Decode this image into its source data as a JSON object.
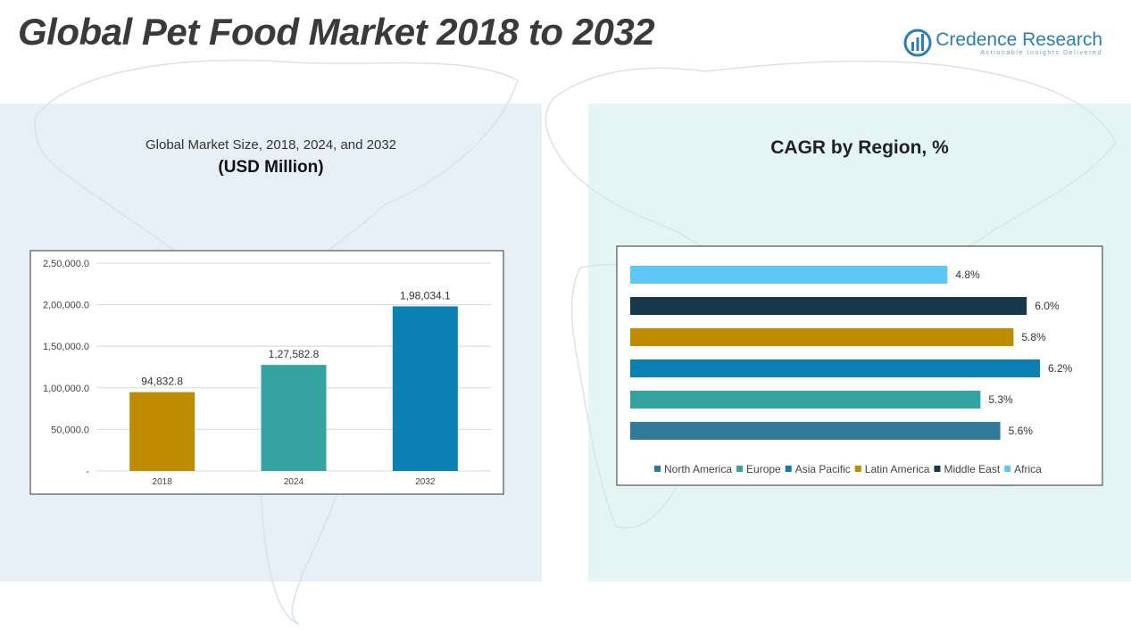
{
  "header": {
    "title": "Global Pet Food Market 2018 to 2032",
    "logo_name": "Credence Research",
    "logo_tagline": "Actionable Insights Delivered"
  },
  "left_chart": {
    "subtitle": "Global Market Size, 2018, 2024, and 2032",
    "unit": "(USD Million)"
  },
  "right_chart": {
    "title": "CAGR by Region, %"
  },
  "chart_data": [
    {
      "type": "bar",
      "title": "Global Market Size, 2018, 2024, and 2032",
      "ylabel": "(USD Million)",
      "categories": [
        "2018",
        "2024",
        "2032"
      ],
      "values": [
        94832.8,
        127582.8,
        198034.1
      ],
      "value_labels": [
        "94,832.8",
        "1,27,582.8",
        "1,98,034.1"
      ],
      "colors": [
        "#bf8c00",
        "#35a3a0",
        "#0a7fb2"
      ],
      "ylim": [
        0,
        250000
      ],
      "yticks": [
        0,
        50000,
        100000,
        150000,
        200000,
        250000
      ],
      "ytick_labels": [
        "-",
        "50,000.0",
        "1,00,000.0",
        "1,50,000.0",
        "2,00,000.0",
        "2,50,000.0"
      ],
      "grid": true
    },
    {
      "type": "bar",
      "orientation": "horizontal",
      "title": "CAGR by Region, %",
      "categories": [
        "North America",
        "Europe",
        "Asia Pacific",
        "Latin America",
        "Middle East",
        "Africa"
      ],
      "values": [
        5.6,
        5.3,
        6.2,
        5.8,
        6.0,
        4.8
      ],
      "value_labels": [
        "5.6%",
        "5.3%",
        "6.2%",
        "5.8%",
        "6.0%",
        "4.8%"
      ],
      "colors": [
        "#2e7b9c",
        "#35a3a0",
        "#0a7fb2",
        "#bf8c00",
        "#16384a",
        "#5bc8f5"
      ],
      "xlim": [
        0,
        6.2
      ],
      "legend": "bottom",
      "grid": false
    }
  ]
}
